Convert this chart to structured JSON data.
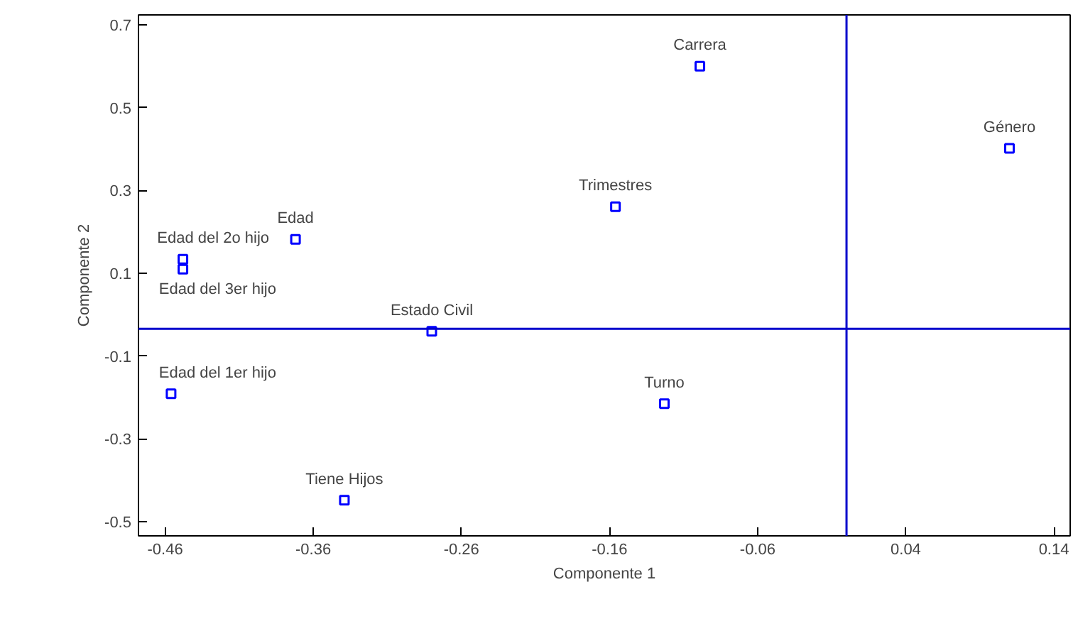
{
  "chart_data": {
    "type": "scatter",
    "xlabel": "Componente 1",
    "ylabel": "Componente 2",
    "x": [
      -0.099,
      0.11,
      -0.156,
      -0.372,
      -0.448,
      -0.448,
      -0.28,
      -0.123,
      -0.456,
      -0.339
    ],
    "series": [
      {
        "color": "#0000ff",
        "values": [
          0.6,
          0.402,
          0.261,
          0.182,
          0.134,
          0.11,
          -0.04,
          -0.215,
          -0.191,
          -0.448
        ]
      }
    ],
    "marker": "square",
    "grid": false,
    "xlim": [
      -0.478,
      0.151
    ],
    "ylim": [
      -0.534,
      0.724
    ],
    "xticks": [
      -0.46,
      -0.36,
      -0.26,
      -0.16,
      -0.06,
      0.04,
      0.14
    ],
    "yticks": [
      -0.5,
      -0.3,
      -0.1,
      0.1,
      0.3,
      0.5,
      0.7
    ],
    "ref_lines": [
      {
        "axis": "y",
        "value": -0.034,
        "color": "#0000cc"
      },
      {
        "axis": "x",
        "value": 0.0,
        "color": "#0000cc"
      }
    ],
    "annotations": [
      {
        "text": "Carrera",
        "x": -0.099,
        "y": 0.6
      },
      {
        "text": "Género",
        "x": 0.11,
        "y": 0.402
      },
      {
        "text": "Trimestres",
        "x": -0.156,
        "y": 0.261
      },
      {
        "text": "Edad",
        "x": -0.372,
        "y": 0.182
      },
      {
        "text": "Edad del 2o hijo",
        "x": -0.448,
        "y": 0.134
      },
      {
        "text": "Edad del 3er hijo",
        "x": -0.448,
        "y": 0.11
      },
      {
        "text": "Estado Civil",
        "x": -0.28,
        "y": -0.04
      },
      {
        "text": "Turno",
        "x": -0.123,
        "y": -0.215
      },
      {
        "text": "Edad del 1er hijo",
        "x": -0.456,
        "y": -0.191
      },
      {
        "text": "Tiene Hijos",
        "x": -0.339,
        "y": -0.448
      }
    ]
  }
}
